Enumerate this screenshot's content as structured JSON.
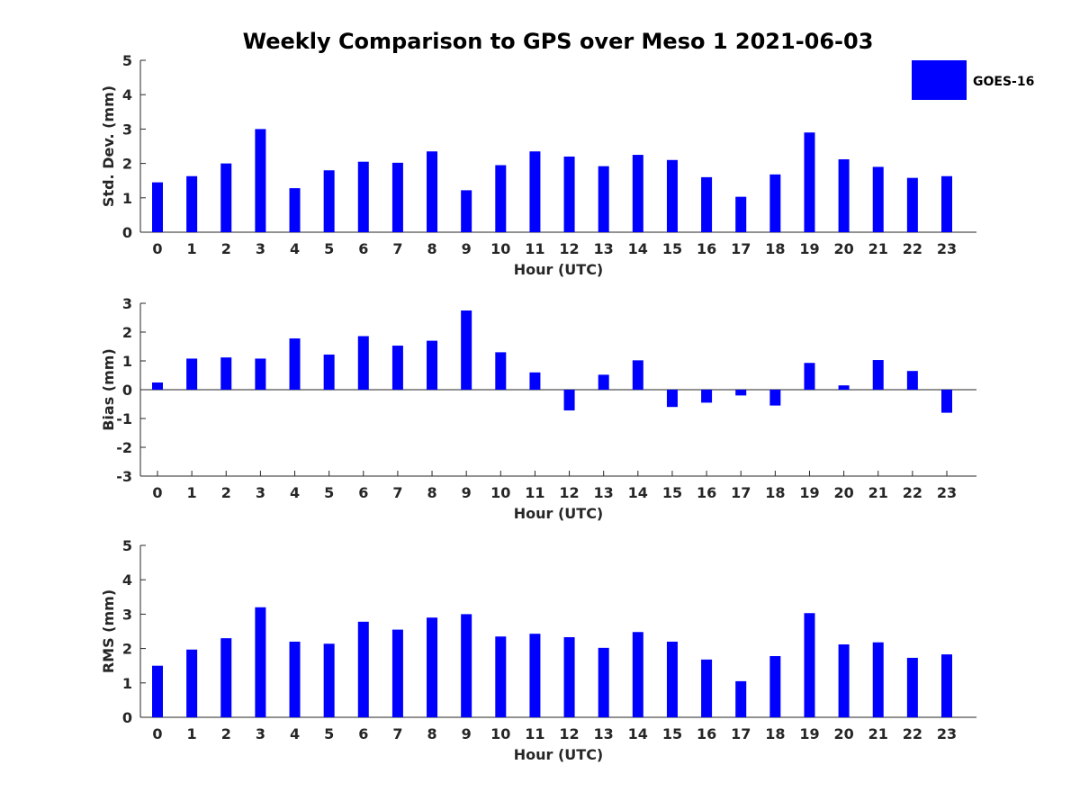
{
  "chart_data": {
    "type": "bar",
    "title": "Weekly Comparison to GPS over Meso 1 2021-06-03",
    "legend": {
      "entries": [
        "GOES-16"
      ],
      "placement": "top-right"
    },
    "series_color": "#0000ff",
    "categories": [
      "0",
      "1",
      "2",
      "3",
      "4",
      "5",
      "6",
      "7",
      "8",
      "9",
      "10",
      "11",
      "12",
      "13",
      "14",
      "15",
      "16",
      "17",
      "18",
      "19",
      "20",
      "21",
      "22",
      "23"
    ],
    "panels": [
      {
        "id": "std",
        "ylabel": "Std. Dev. (mm)",
        "xlabel": "Hour (UTC)",
        "ylim": [
          0,
          5
        ],
        "yticks": [
          0,
          1,
          2,
          3,
          4,
          5
        ],
        "series": [
          {
            "name": "GOES-16",
            "values": [
              1.45,
              1.63,
              2.0,
              3.0,
              1.28,
              1.8,
              2.05,
              2.02,
              2.35,
              1.22,
              1.95,
              2.35,
              2.2,
              1.92,
              2.25,
              2.1,
              1.6,
              1.03,
              1.68,
              2.9,
              2.12,
              1.9,
              1.58,
              1.63
            ]
          }
        ]
      },
      {
        "id": "bias",
        "ylabel": "Bias (mm)",
        "xlabel": "Hour (UTC)",
        "ylim": [
          -3,
          3
        ],
        "yticks": [
          -3,
          -2,
          -1,
          0,
          1,
          2,
          3
        ],
        "zero_line": true,
        "series": [
          {
            "name": "GOES-16",
            "values": [
              0.25,
              1.08,
              1.12,
              1.08,
              1.78,
              1.22,
              1.86,
              1.53,
              1.7,
              2.75,
              1.3,
              0.6,
              -0.72,
              0.52,
              1.02,
              -0.6,
              -0.45,
              -0.2,
              -0.55,
              0.93,
              0.15,
              1.03,
              0.65,
              -0.8
            ]
          }
        ]
      },
      {
        "id": "rms",
        "ylabel": "RMS (mm)",
        "xlabel": "Hour (UTC)",
        "ylim": [
          0,
          5
        ],
        "yticks": [
          0,
          1,
          2,
          3,
          4,
          5
        ],
        "series": [
          {
            "name": "GOES-16",
            "values": [
              1.5,
              1.97,
              2.3,
              3.2,
              2.2,
              2.14,
              2.78,
              2.55,
              2.9,
              3.0,
              2.35,
              2.43,
              2.33,
              2.02,
              2.48,
              2.2,
              1.68,
              1.05,
              1.78,
              3.03,
              2.12,
              2.18,
              1.73,
              1.83
            ]
          }
        ]
      }
    ]
  }
}
